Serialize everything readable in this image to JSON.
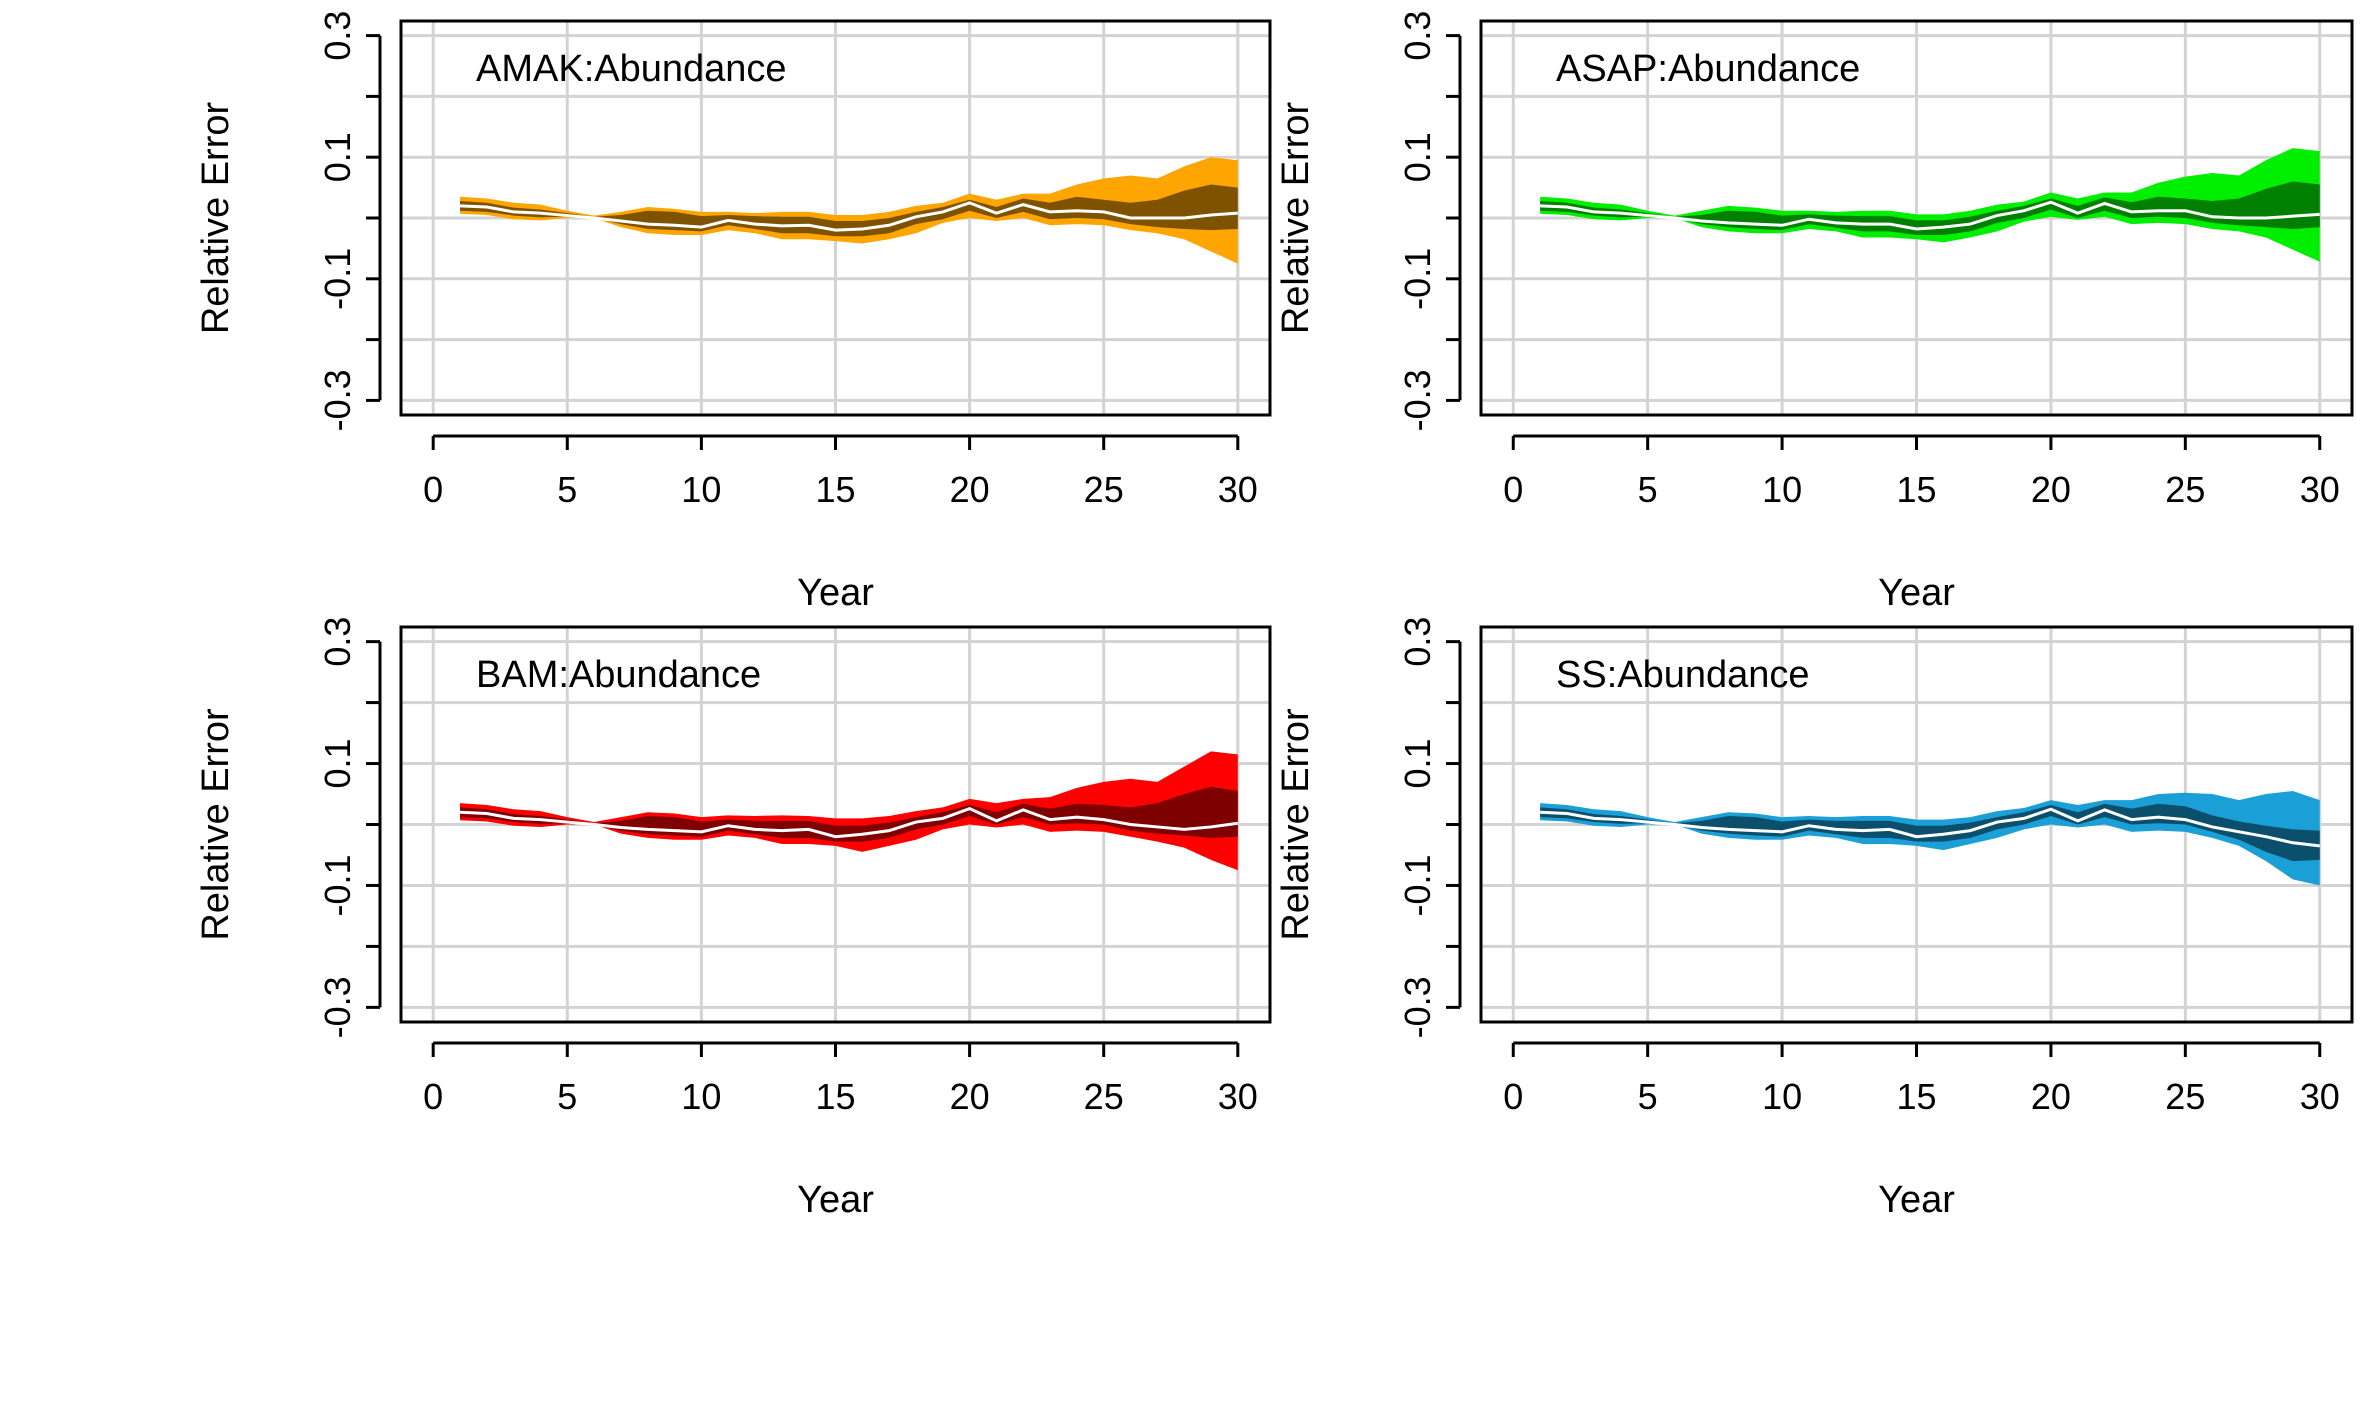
{
  "chart_data": [
    {
      "type": "area",
      "title": "AMAK:Abundance",
      "xlabel": "Year",
      "ylabel": "Relative Error",
      "xlim": [
        0,
        30
      ],
      "ylim": [
        -0.3,
        0.3
      ],
      "xticks": [
        0,
        5,
        10,
        15,
        20,
        25,
        30
      ],
      "yticks": [
        -0.3,
        -0.1,
        0.1,
        0.3
      ],
      "grid": true,
      "colors": {
        "outer": "#FFA500",
        "inner": "#7F5200",
        "median": "#FFFFFF"
      },
      "x": [
        1,
        2,
        3,
        4,
        5,
        6,
        7,
        8,
        9,
        10,
        11,
        12,
        13,
        14,
        15,
        16,
        17,
        18,
        19,
        20,
        21,
        22,
        23,
        24,
        25,
        26,
        27,
        28,
        29,
        30
      ],
      "median": [
        0.02,
        0.018,
        0.01,
        0.008,
        0.004,
        0.0,
        -0.005,
        -0.01,
        -0.012,
        -0.015,
        -0.004,
        -0.01,
        -0.013,
        -0.012,
        -0.02,
        -0.018,
        -0.012,
        0.002,
        0.01,
        0.025,
        0.008,
        0.022,
        0.01,
        0.012,
        0.01,
        0.0,
        0.0,
        0.0,
        0.005,
        0.008
      ],
      "inner_band": {
        "lower": [
          0.012,
          0.01,
          0.004,
          0.001,
          0.002,
          0.0,
          -0.01,
          -0.018,
          -0.02,
          -0.022,
          -0.012,
          -0.018,
          -0.025,
          -0.025,
          -0.03,
          -0.03,
          -0.025,
          -0.01,
          -0.002,
          0.012,
          0.0,
          0.01,
          -0.002,
          0.0,
          -0.002,
          -0.01,
          -0.015,
          -0.018,
          -0.02,
          -0.018
        ],
        "upper": [
          0.028,
          0.025,
          0.017,
          0.014,
          0.008,
          0.002,
          0.005,
          0.012,
          0.01,
          0.003,
          0.005,
          0.003,
          0.002,
          0.002,
          -0.005,
          -0.005,
          0.0,
          0.01,
          0.018,
          0.03,
          0.018,
          0.032,
          0.025,
          0.035,
          0.03,
          0.025,
          0.03,
          0.045,
          0.055,
          0.05
        ]
      },
      "outer_band": {
        "lower": [
          0.007,
          0.005,
          -0.002,
          -0.004,
          0.0,
          0.0,
          -0.015,
          -0.025,
          -0.028,
          -0.028,
          -0.02,
          -0.025,
          -0.035,
          -0.035,
          -0.038,
          -0.042,
          -0.035,
          -0.025,
          -0.008,
          0.0,
          -0.005,
          0.0,
          -0.012,
          -0.01,
          -0.012,
          -0.02,
          -0.025,
          -0.035,
          -0.055,
          -0.075
        ],
        "upper": [
          0.035,
          0.032,
          0.025,
          0.022,
          0.012,
          0.004,
          0.01,
          0.018,
          0.015,
          0.01,
          0.01,
          0.008,
          0.01,
          0.01,
          0.005,
          0.005,
          0.01,
          0.02,
          0.025,
          0.04,
          0.03,
          0.04,
          0.04,
          0.055,
          0.065,
          0.07,
          0.065,
          0.085,
          0.1,
          0.095
        ]
      }
    },
    {
      "type": "area",
      "title": "ASAP:Abundance",
      "xlabel": "Year",
      "ylabel": "Relative Error",
      "xlim": [
        0,
        30
      ],
      "ylim": [
        -0.3,
        0.3
      ],
      "xticks": [
        0,
        5,
        10,
        15,
        20,
        25,
        30
      ],
      "yticks": [
        -0.3,
        -0.1,
        0.1,
        0.3
      ],
      "grid": true,
      "colors": {
        "outer": "#00EE00",
        "inner": "#007F00",
        "median": "#FFFFFF"
      },
      "x": [
        1,
        2,
        3,
        4,
        5,
        6,
        7,
        8,
        9,
        10,
        11,
        12,
        13,
        14,
        15,
        16,
        17,
        18,
        19,
        20,
        21,
        22,
        23,
        24,
        25,
        26,
        27,
        28,
        29,
        30
      ],
      "median": [
        0.02,
        0.018,
        0.01,
        0.008,
        0.004,
        0.0,
        -0.005,
        -0.008,
        -0.01,
        -0.012,
        -0.002,
        -0.008,
        -0.01,
        -0.01,
        -0.018,
        -0.015,
        -0.01,
        0.004,
        0.012,
        0.026,
        0.008,
        0.024,
        0.01,
        0.012,
        0.012,
        0.002,
        0.0,
        0.0,
        0.003,
        0.006
      ],
      "inner_band": {
        "lower": [
          0.012,
          0.01,
          0.004,
          0.001,
          0.002,
          0.0,
          -0.01,
          -0.015,
          -0.018,
          -0.02,
          -0.01,
          -0.016,
          -0.022,
          -0.022,
          -0.028,
          -0.028,
          -0.022,
          -0.008,
          0.0,
          0.014,
          0.0,
          0.012,
          0.0,
          0.002,
          0.0,
          -0.008,
          -0.012,
          -0.015,
          -0.018,
          -0.015
        ],
        "upper": [
          0.028,
          0.025,
          0.017,
          0.014,
          0.008,
          0.002,
          0.005,
          0.012,
          0.01,
          0.004,
          0.006,
          0.004,
          0.003,
          0.003,
          -0.004,
          -0.004,
          0.002,
          0.012,
          0.02,
          0.032,
          0.02,
          0.034,
          0.026,
          0.035,
          0.032,
          0.028,
          0.032,
          0.048,
          0.06,
          0.055
        ]
      },
      "outer_band": {
        "lower": [
          0.007,
          0.005,
          -0.002,
          -0.004,
          0.0,
          0.0,
          -0.015,
          -0.022,
          -0.025,
          -0.025,
          -0.018,
          -0.022,
          -0.032,
          -0.032,
          -0.035,
          -0.04,
          -0.032,
          -0.022,
          -0.006,
          0.002,
          -0.003,
          0.002,
          -0.01,
          -0.008,
          -0.01,
          -0.018,
          -0.022,
          -0.032,
          -0.052,
          -0.072
        ],
        "upper": [
          0.035,
          0.032,
          0.025,
          0.022,
          0.012,
          0.004,
          0.012,
          0.02,
          0.017,
          0.012,
          0.012,
          0.01,
          0.012,
          0.012,
          0.006,
          0.006,
          0.012,
          0.022,
          0.027,
          0.042,
          0.032,
          0.042,
          0.042,
          0.058,
          0.068,
          0.074,
          0.07,
          0.095,
          0.115,
          0.11
        ]
      }
    },
    {
      "type": "area",
      "title": "BAM:Abundance",
      "xlabel": "Year",
      "ylabel": "Relative Error",
      "xlim": [
        0,
        30
      ],
      "ylim": [
        -0.3,
        0.3
      ],
      "xticks": [
        0,
        5,
        10,
        15,
        20,
        25,
        30
      ],
      "yticks": [
        -0.3,
        -0.1,
        0.1,
        0.3
      ],
      "grid": true,
      "colors": {
        "outer": "#FF0000",
        "inner": "#7F0000",
        "median": "#FFFFFF"
      },
      "x": [
        1,
        2,
        3,
        4,
        5,
        6,
        7,
        8,
        9,
        10,
        11,
        12,
        13,
        14,
        15,
        16,
        17,
        18,
        19,
        20,
        21,
        22,
        23,
        24,
        25,
        26,
        27,
        28,
        29,
        30
      ],
      "median": [
        0.02,
        0.018,
        0.01,
        0.008,
        0.004,
        0.0,
        -0.005,
        -0.008,
        -0.01,
        -0.012,
        -0.002,
        -0.008,
        -0.01,
        -0.008,
        -0.02,
        -0.016,
        -0.01,
        0.004,
        0.01,
        0.026,
        0.006,
        0.024,
        0.008,
        0.012,
        0.008,
        0.0,
        -0.004,
        -0.008,
        -0.004,
        0.002
      ],
      "inner_band": {
        "lower": [
          0.012,
          0.01,
          0.004,
          0.001,
          0.002,
          0.0,
          -0.01,
          -0.016,
          -0.018,
          -0.02,
          -0.01,
          -0.016,
          -0.022,
          -0.022,
          -0.028,
          -0.028,
          -0.022,
          -0.008,
          0.0,
          0.014,
          0.0,
          0.012,
          0.0,
          0.002,
          0.0,
          -0.01,
          -0.015,
          -0.018,
          -0.022,
          -0.02
        ],
        "upper": [
          0.028,
          0.025,
          0.017,
          0.014,
          0.008,
          0.002,
          0.006,
          0.014,
          0.012,
          0.005,
          0.008,
          0.006,
          0.006,
          0.006,
          -0.002,
          -0.002,
          0.003,
          0.012,
          0.02,
          0.032,
          0.02,
          0.034,
          0.026,
          0.034,
          0.032,
          0.028,
          0.035,
          0.05,
          0.062,
          0.055
        ]
      },
      "outer_band": {
        "lower": [
          0.007,
          0.005,
          -0.002,
          -0.004,
          0.0,
          0.0,
          -0.015,
          -0.022,
          -0.025,
          -0.025,
          -0.018,
          -0.022,
          -0.032,
          -0.032,
          -0.035,
          -0.045,
          -0.035,
          -0.025,
          -0.008,
          0.0,
          -0.005,
          0.0,
          -0.012,
          -0.01,
          -0.012,
          -0.02,
          -0.028,
          -0.038,
          -0.058,
          -0.075
        ],
        "upper": [
          0.035,
          0.032,
          0.025,
          0.022,
          0.012,
          0.004,
          0.012,
          0.02,
          0.018,
          0.012,
          0.015,
          0.014,
          0.015,
          0.014,
          0.01,
          0.01,
          0.014,
          0.022,
          0.028,
          0.042,
          0.035,
          0.042,
          0.045,
          0.06,
          0.07,
          0.075,
          0.07,
          0.095,
          0.12,
          0.115
        ]
      }
    },
    {
      "type": "area",
      "title": "SS:Abundance",
      "xlabel": "Year",
      "ylabel": "Relative Error",
      "xlim": [
        0,
        30
      ],
      "ylim": [
        -0.3,
        0.3
      ],
      "xticks": [
        0,
        5,
        10,
        15,
        20,
        25,
        30
      ],
      "yticks": [
        -0.3,
        -0.1,
        0.1,
        0.3
      ],
      "grid": true,
      "colors": {
        "outer": "#1A9FD6",
        "inner": "#0B4F6C",
        "median": "#FFFFFF"
      },
      "x": [
        1,
        2,
        3,
        4,
        5,
        6,
        7,
        8,
        9,
        10,
        11,
        12,
        13,
        14,
        15,
        16,
        17,
        18,
        19,
        20,
        21,
        22,
        23,
        24,
        25,
        26,
        27,
        28,
        29,
        30
      ],
      "median": [
        0.02,
        0.018,
        0.01,
        0.008,
        0.004,
        0.0,
        -0.005,
        -0.008,
        -0.01,
        -0.012,
        -0.002,
        -0.008,
        -0.01,
        -0.008,
        -0.02,
        -0.016,
        -0.01,
        0.004,
        0.01,
        0.025,
        0.006,
        0.024,
        0.008,
        0.012,
        0.008,
        -0.004,
        -0.012,
        -0.02,
        -0.03,
        -0.035
      ],
      "inner_band": {
        "lower": [
          0.012,
          0.01,
          0.004,
          0.001,
          0.002,
          0.0,
          -0.01,
          -0.015,
          -0.018,
          -0.02,
          -0.01,
          -0.016,
          -0.022,
          -0.022,
          -0.028,
          -0.028,
          -0.022,
          -0.008,
          0.0,
          0.014,
          0.0,
          0.012,
          0.0,
          0.002,
          0.0,
          -0.012,
          -0.025,
          -0.045,
          -0.06,
          -0.058
        ],
        "upper": [
          0.028,
          0.025,
          0.017,
          0.014,
          0.008,
          0.002,
          0.006,
          0.014,
          0.012,
          0.005,
          0.008,
          0.006,
          0.006,
          0.006,
          -0.002,
          -0.002,
          0.003,
          0.012,
          0.02,
          0.032,
          0.02,
          0.034,
          0.026,
          0.034,
          0.03,
          0.015,
          0.005,
          -0.002,
          -0.008,
          -0.01
        ]
      },
      "outer_band": {
        "lower": [
          0.007,
          0.005,
          -0.002,
          -0.004,
          0.0,
          0.0,
          -0.015,
          -0.022,
          -0.025,
          -0.025,
          -0.018,
          -0.022,
          -0.032,
          -0.032,
          -0.035,
          -0.042,
          -0.032,
          -0.022,
          -0.008,
          0.0,
          -0.005,
          0.0,
          -0.012,
          -0.01,
          -0.012,
          -0.022,
          -0.035,
          -0.06,
          -0.09,
          -0.1
        ],
        "upper": [
          0.035,
          0.032,
          0.025,
          0.022,
          0.012,
          0.004,
          0.012,
          0.02,
          0.018,
          0.012,
          0.014,
          0.012,
          0.014,
          0.014,
          0.008,
          0.008,
          0.012,
          0.022,
          0.027,
          0.04,
          0.032,
          0.04,
          0.04,
          0.05,
          0.052,
          0.05,
          0.04,
          0.05,
          0.055,
          0.04
        ]
      }
    }
  ]
}
